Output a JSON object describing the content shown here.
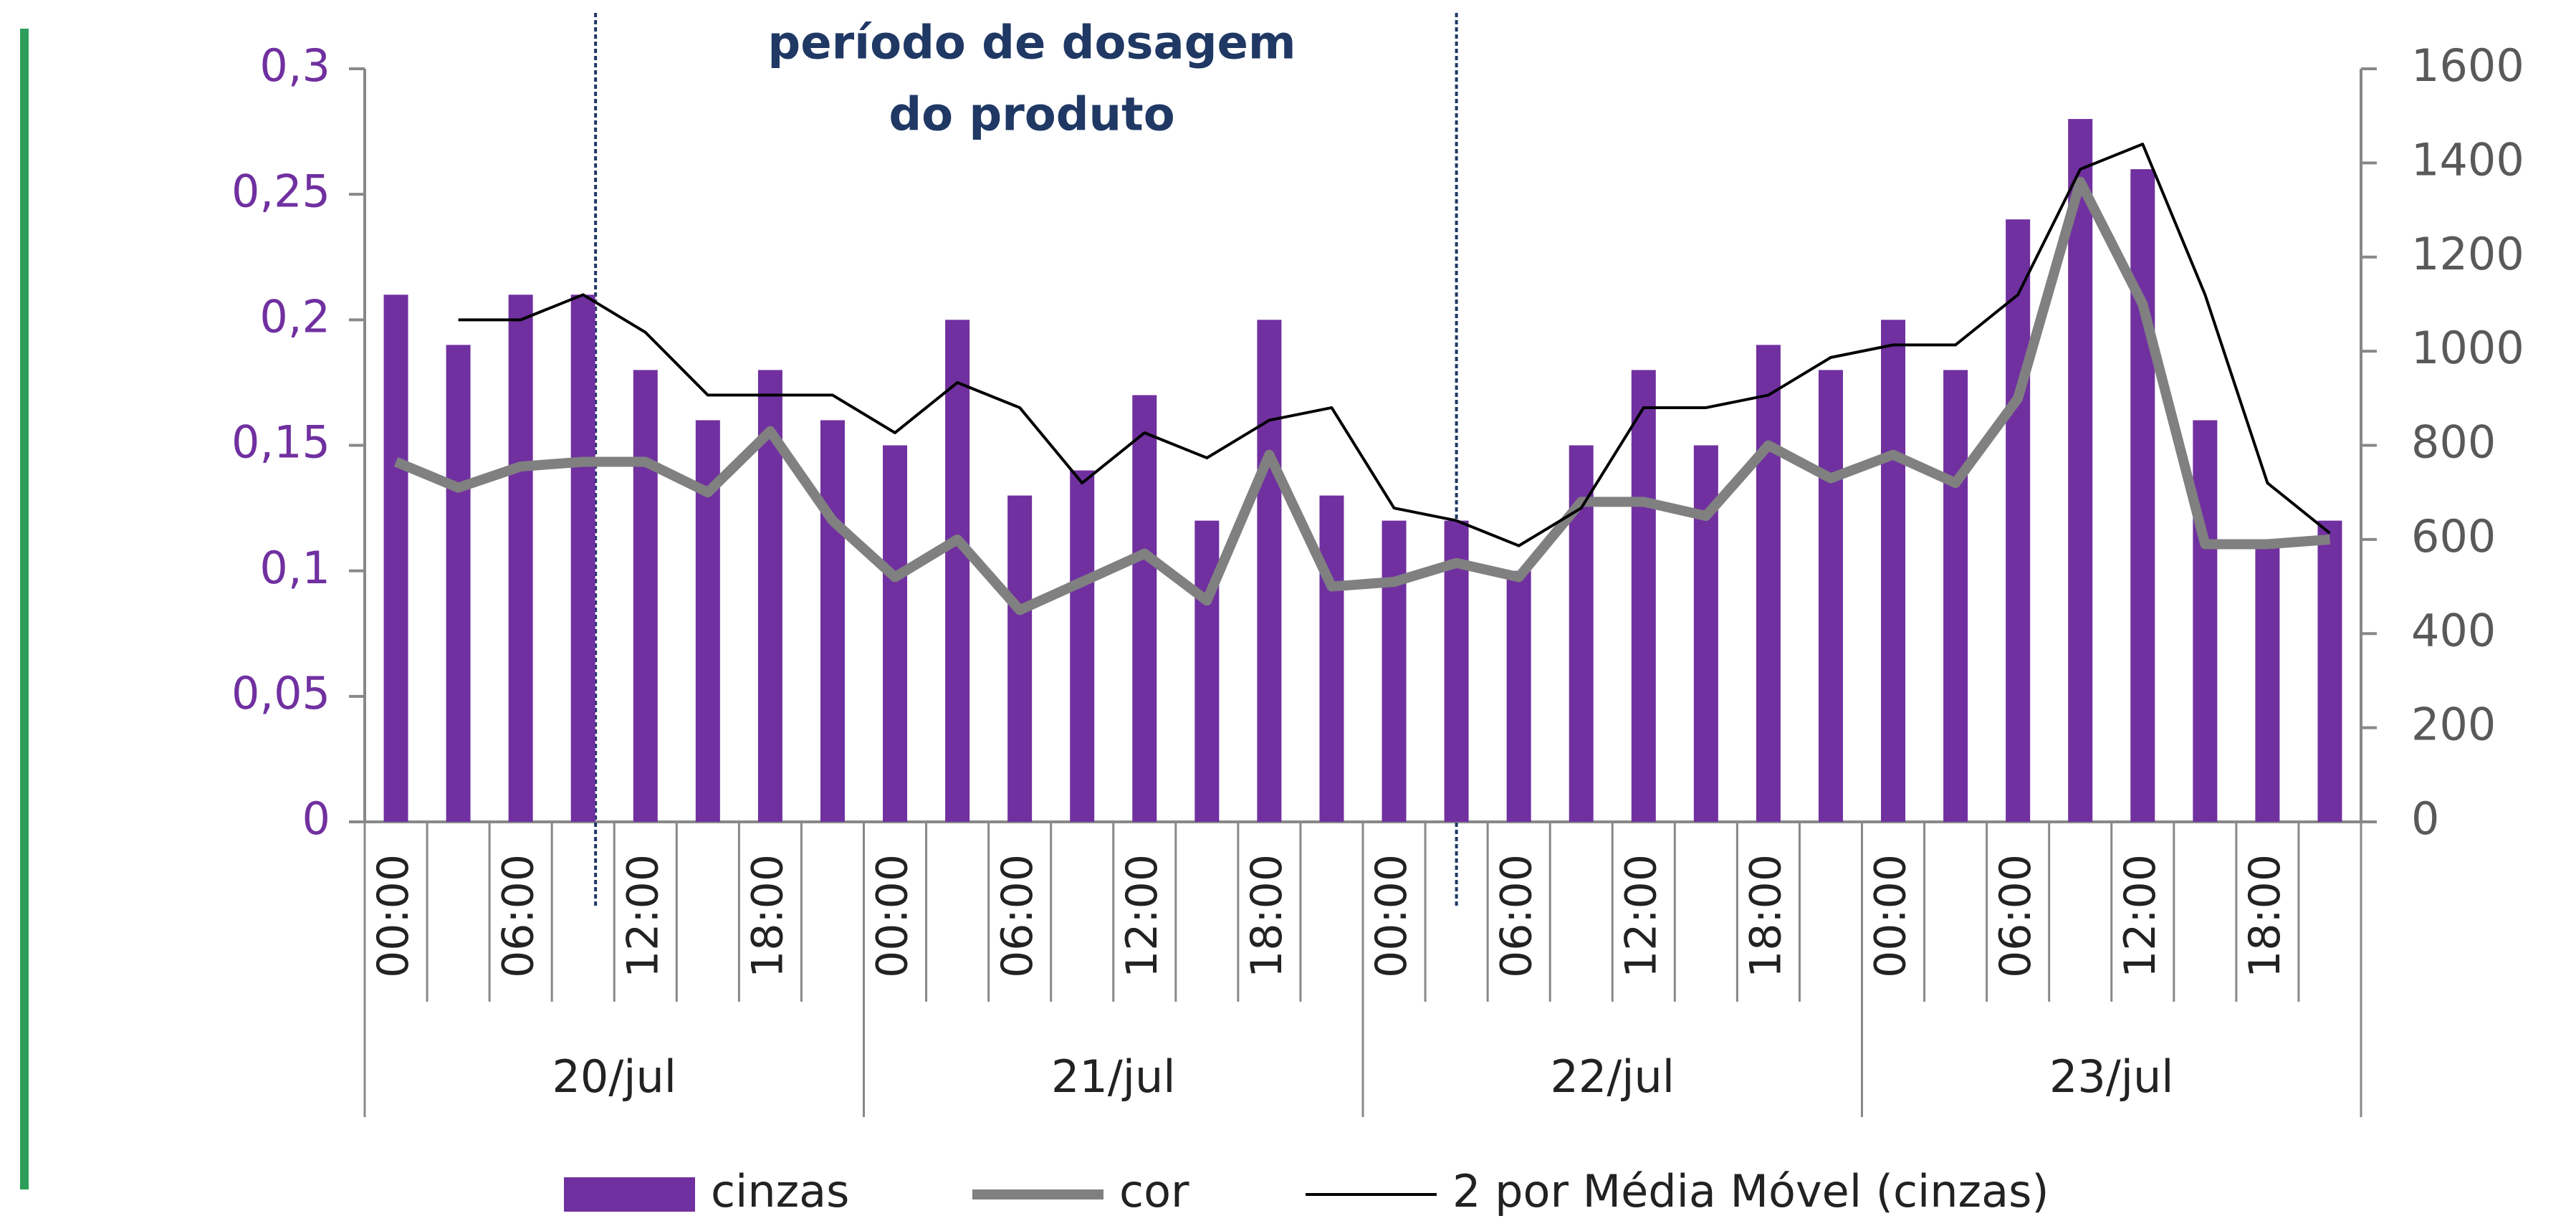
{
  "chart_data": {
    "type": "bar",
    "annotation": [
      "período de dosagem",
      "do produto"
    ],
    "categories": [
      "00:00",
      null,
      "06:00",
      null,
      "12:00",
      null,
      "18:00",
      null,
      "00:00",
      null,
      "06:00",
      null,
      "12:00",
      null,
      "18:00",
      null,
      "00:00",
      null,
      "06:00",
      null,
      "12:00",
      null,
      "18:00",
      null,
      "00:00",
      null,
      "06:00",
      null,
      "12:00",
      null,
      "18:00",
      null
    ],
    "groups": [
      "20/jul",
      "21/jul",
      "22/jul",
      "23/jul"
    ],
    "series": [
      {
        "name": "cinzas",
        "type": "bar",
        "color": "#7030a0",
        "values": [
          0.21,
          0.19,
          0.21,
          0.21,
          0.18,
          0.16,
          0.18,
          0.16,
          0.15,
          0.2,
          0.13,
          0.14,
          0.17,
          0.12,
          0.2,
          0.13,
          0.12,
          0.12,
          0.1,
          0.15,
          0.18,
          0.15,
          0.19,
          0.18,
          0.2,
          0.18,
          0.24,
          0.28,
          0.26,
          0.16,
          0.11,
          0.12
        ]
      },
      {
        "name": "cor",
        "type": "line",
        "axis": "y2",
        "color": "#808080",
        "values": [
          765,
          710,
          755,
          765,
          765,
          700,
          830,
          640,
          520,
          600,
          450,
          510,
          570,
          470,
          780,
          500,
          510,
          550,
          520,
          680,
          680,
          650,
          800,
          730,
          780,
          720,
          900,
          1360,
          1100,
          590,
          590,
          600
        ]
      },
      {
        "name": "2 por Média Móvel (cinzas)",
        "type": "line",
        "color": "#000000",
        "values": [
          null,
          0.2,
          0.2,
          0.21,
          0.195,
          0.17,
          0.17,
          0.17,
          0.155,
          0.175,
          0.165,
          0.135,
          0.155,
          0.145,
          0.16,
          0.165,
          0.125,
          0.12,
          0.11,
          0.125,
          0.165,
          0.165,
          0.17,
          0.185,
          0.19,
          0.19,
          0.21,
          0.26,
          0.27,
          0.21,
          0.135,
          0.115
        ]
      }
    ],
    "ylim": [
      0,
      0.3
    ],
    "yticks": [
      0,
      {
        "value": 0.05,
        "label": "0,05"
      },
      {
        "value": 0.1,
        "label": "0,1"
      },
      {
        "value": 0.15,
        "label": "0,15"
      },
      {
        "value": 0.2,
        "label": "0,2"
      },
      {
        "value": 0.25,
        "label": "0,25"
      },
      {
        "value": 0.3,
        "label": "0,3"
      }
    ],
    "y2lim": [
      0,
      1600
    ],
    "y2ticks": [
      0,
      200,
      400,
      600,
      800,
      1000,
      1200,
      1400,
      1600
    ],
    "legend": "bottom"
  }
}
